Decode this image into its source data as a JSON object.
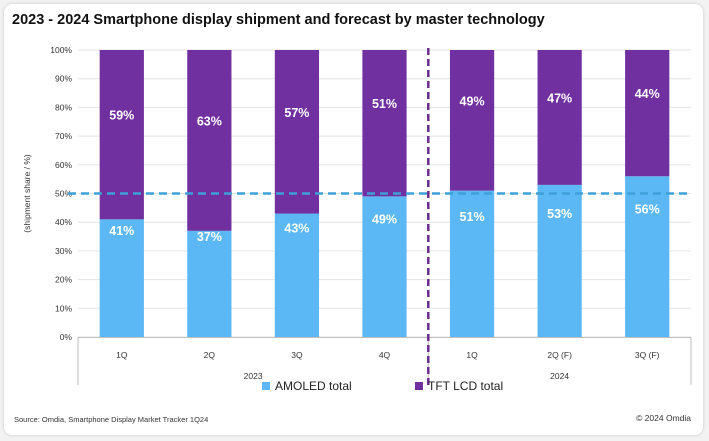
{
  "chart_data": {
    "type": "bar",
    "stacked": true,
    "title": "2023 - 2024 Smartphone display shipment and forecast by master technology",
    "ylabel": "(shipment share / %)",
    "ylim": [
      0,
      100
    ],
    "yticks": [
      "0%",
      "10%",
      "20%",
      "30%",
      "40%",
      "50%",
      "60%",
      "70%",
      "80%",
      "90%",
      "100%"
    ],
    "categories": [
      "1Q",
      "2Q",
      "3Q",
      "4Q",
      "1Q",
      "2Q (F)",
      "3Q (F)"
    ],
    "groups": [
      {
        "label": "2023",
        "count": 4
      },
      {
        "label": "2024",
        "count": 3
      }
    ],
    "series": [
      {
        "name": "AMOLED total",
        "color": "#5bb8f5",
        "values": [
          41,
          37,
          43,
          49,
          51,
          53,
          56
        ],
        "labels": [
          "41%",
          "37%",
          "43%",
          "49%",
          "51%",
          "53%",
          "56%"
        ]
      },
      {
        "name": "TFT LCD total",
        "color": "#7030a0",
        "values": [
          59,
          63,
          57,
          51,
          49,
          47,
          44
        ],
        "labels": [
          "59%",
          "63%",
          "57%",
          "51%",
          "49%",
          "47%",
          "44%"
        ]
      }
    ],
    "reference_line": {
      "value": 50,
      "style": "dashed",
      "color": "#3fa0d8"
    },
    "divider_color": "#6a2c91",
    "legend_position": "bottom",
    "grid": true
  },
  "footer": {
    "source": "Source: Omdia, Smartphone Display Market Tracker 1Q24",
    "copyright": "© 2024 Omdia"
  }
}
